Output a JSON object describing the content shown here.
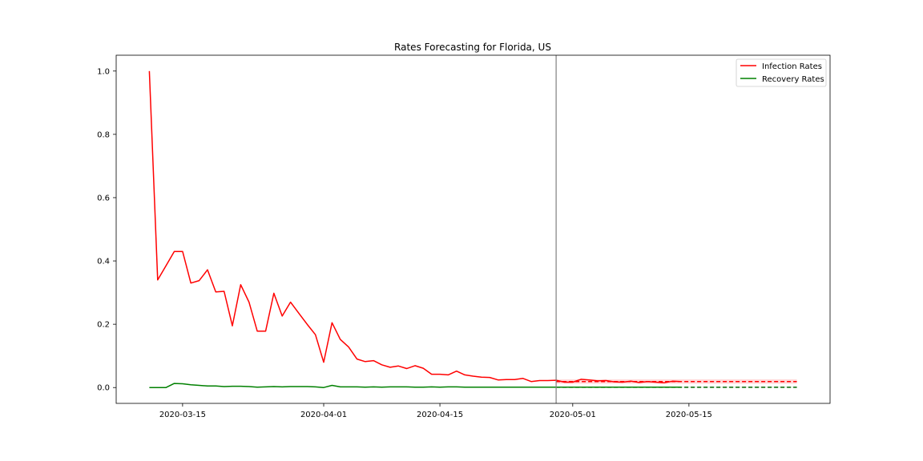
{
  "chart_data": {
    "type": "line",
    "title": "Rates Forecasting for Florida, US",
    "xlabel": "",
    "ylabel": "",
    "x_start": "2020-03-11",
    "x_ticks": [
      "2020-03-15",
      "2020-04-01",
      "2020-04-15",
      "2020-05-01",
      "2020-05-15"
    ],
    "y_ticks": [
      "0.0",
      "0.2",
      "0.4",
      "0.6",
      "0.8",
      "1.0"
    ],
    "ylim": [
      -0.05,
      1.05
    ],
    "xlim": [
      "2020-03-07",
      "2020-06-01"
    ],
    "legend_position": "top-right",
    "grid": false,
    "vertical_line_date": "2020-04-29",
    "series": [
      {
        "name": "Infection Rates",
        "color": "#ff0000",
        "values": [
          1.0,
          0.34,
          0.385,
          0.43,
          0.43,
          0.33,
          0.338,
          0.372,
          0.302,
          0.304,
          0.195,
          0.325,
          0.27,
          0.178,
          0.178,
          0.298,
          0.226,
          0.27,
          0.235,
          0.2,
          0.167,
          0.08,
          0.205,
          0.152,
          0.128,
          0.09,
          0.082,
          0.085,
          0.072,
          0.064,
          0.068,
          0.06,
          0.069,
          0.061,
          0.042,
          0.042,
          0.04,
          0.052,
          0.04,
          0.036,
          0.033,
          0.032,
          0.024,
          0.025,
          0.025,
          0.029,
          0.019,
          0.022,
          0.022,
          0.023,
          0.017,
          0.017,
          0.026,
          0.024,
          0.021,
          0.022,
          0.018,
          0.017,
          0.02,
          0.016,
          0.019,
          0.017,
          0.015,
          0.02,
          0.019
        ]
      },
      {
        "name": "Recovery Rates",
        "color": "#008000",
        "values": [
          0.0,
          0.0,
          0.0,
          0.013,
          0.012,
          0.009,
          0.007,
          0.005,
          0.005,
          0.003,
          0.004,
          0.004,
          0.003,
          0.001,
          0.002,
          0.003,
          0.002,
          0.003,
          0.003,
          0.003,
          0.002,
          0.0,
          0.007,
          0.002,
          0.002,
          0.002,
          0.001,
          0.002,
          0.001,
          0.002,
          0.002,
          0.002,
          0.001,
          0.001,
          0.002,
          0.001,
          0.002,
          0.002,
          0.001,
          0.001,
          0.001,
          0.001,
          0.001,
          0.001,
          0.001,
          0.001,
          0.001,
          0.001,
          0.001,
          0.001,
          0.001,
          0.001,
          0.001,
          0.001,
          0.001,
          0.001,
          0.001,
          0.001,
          0.001,
          0.001,
          0.001,
          0.001,
          0.001,
          0.001,
          0.001
        ]
      }
    ],
    "forecast": {
      "start_date": "2020-04-29",
      "end_date": "2020-05-28",
      "infection": {
        "value": 0.019,
        "band": [
          0.012,
          0.026
        ]
      },
      "recovery": {
        "value": 0.001,
        "band": [
          0.0,
          0.003
        ]
      }
    }
  }
}
